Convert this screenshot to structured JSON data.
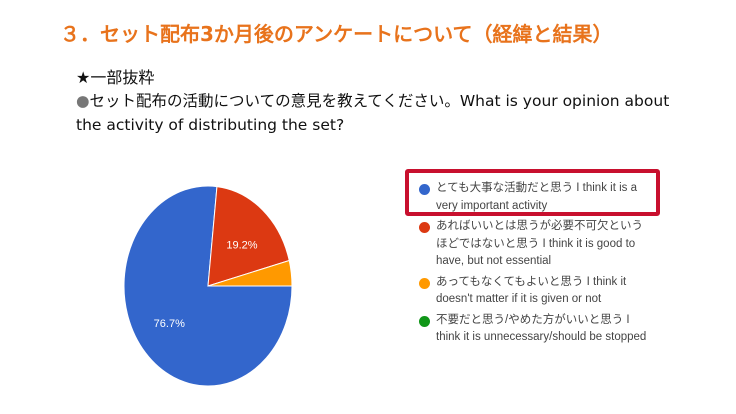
{
  "title": "３．セット配布3か月後のアンケートについて（経緯と結果）",
  "subtitle": "★一部抜粋",
  "question": "セット配布の活動についての意見を教えてください。What is your opinion about the activity of distributing the set?",
  "chart_data": {
    "type": "pie",
    "categories": [
      "とても大事な活動だと思う I think it is a very important activity",
      "あればいいとは思うが必要不可欠というほどではないと思う I think it is good to have, but not essential",
      "あってもなくてもよいと思う I think it doesn't matter if it is given or not",
      "不要だと思う/やめた方がいいと思う I think it is unnecessary/should be stopped"
    ],
    "values": [
      76.7,
      19.2,
      4.1,
      0
    ],
    "data_labels": [
      "76.7%",
      "19.2%",
      "",
      ""
    ],
    "colors": [
      "#3366cc",
      "#dc3912",
      "#ff9900",
      "#109618"
    ],
    "legend_position": "right",
    "highlighted_legend_item": 0
  }
}
